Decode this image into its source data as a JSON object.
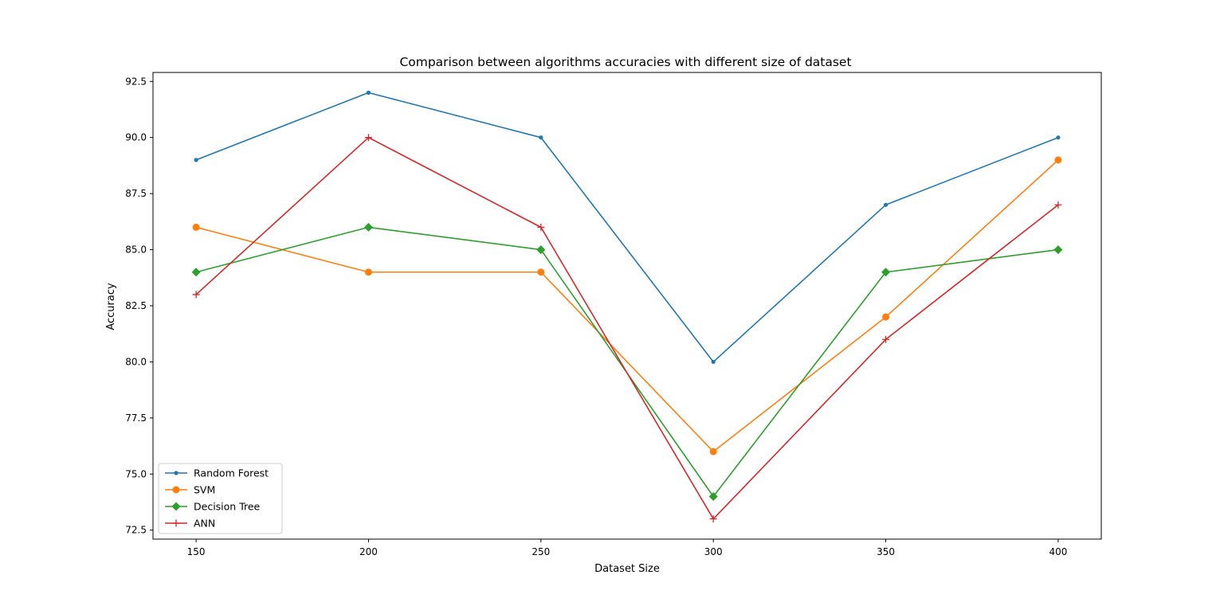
{
  "chart_data": {
    "type": "line",
    "title": "Comparison between algorithms accuracies with different size of dataset",
    "xlabel": "Dataset Size",
    "ylabel": "Accuracy",
    "x": [
      150,
      200,
      250,
      300,
      350,
      400
    ],
    "x_ticks": [
      "150",
      "200",
      "250",
      "300",
      "350",
      "400"
    ],
    "y_ticks": [
      "72.5",
      "75.0",
      "77.5",
      "80.0",
      "82.5",
      "85.0",
      "87.5",
      "90.0",
      "92.5"
    ],
    "xlim": [
      137.5,
      412.5
    ],
    "ylim": [
      72.1,
      92.9
    ],
    "grid": false,
    "legend_position": "lower-left",
    "series": [
      {
        "name": "Random Forest",
        "values": [
          89,
          92,
          90,
          80,
          87,
          90
        ],
        "color": "#1f77b4",
        "marker": "point"
      },
      {
        "name": "SVM",
        "values": [
          86,
          84,
          84,
          76,
          82,
          89
        ],
        "color": "#ff7f0e",
        "marker": "circle"
      },
      {
        "name": "Decision Tree",
        "values": [
          84,
          86,
          85,
          74,
          84,
          85
        ],
        "color": "#2ca02c",
        "marker": "diamond"
      },
      {
        "name": "ANN",
        "values": [
          83,
          90,
          86,
          73,
          81,
          87
        ],
        "color": "#d62728",
        "marker": "plus"
      }
    ]
  }
}
